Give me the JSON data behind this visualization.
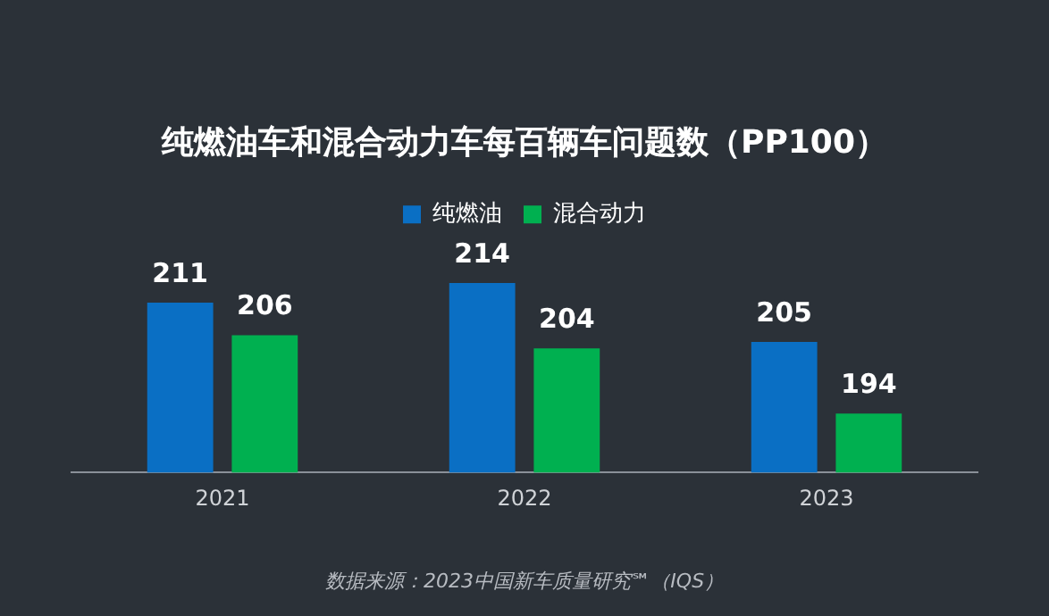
{
  "chart_data": {
    "type": "bar",
    "title": "纯燃油车和混合动力车每百辆车问题数（PP100）",
    "categories": [
      "2021",
      "2022",
      "2023"
    ],
    "series": [
      {
        "name": "纯燃油",
        "color": "#0a6fc4",
        "values": [
          211,
          214,
          205
        ]
      },
      {
        "name": "混合动力",
        "color": "#00b050",
        "values": [
          206,
          204,
          194
        ]
      }
    ],
    "tick_labels": "x",
    "data_labels": true,
    "legend": "top",
    "grid": false,
    "annotations": [
      "数据来源：2023中国新车质量研究℠（IQS）"
    ]
  }
}
